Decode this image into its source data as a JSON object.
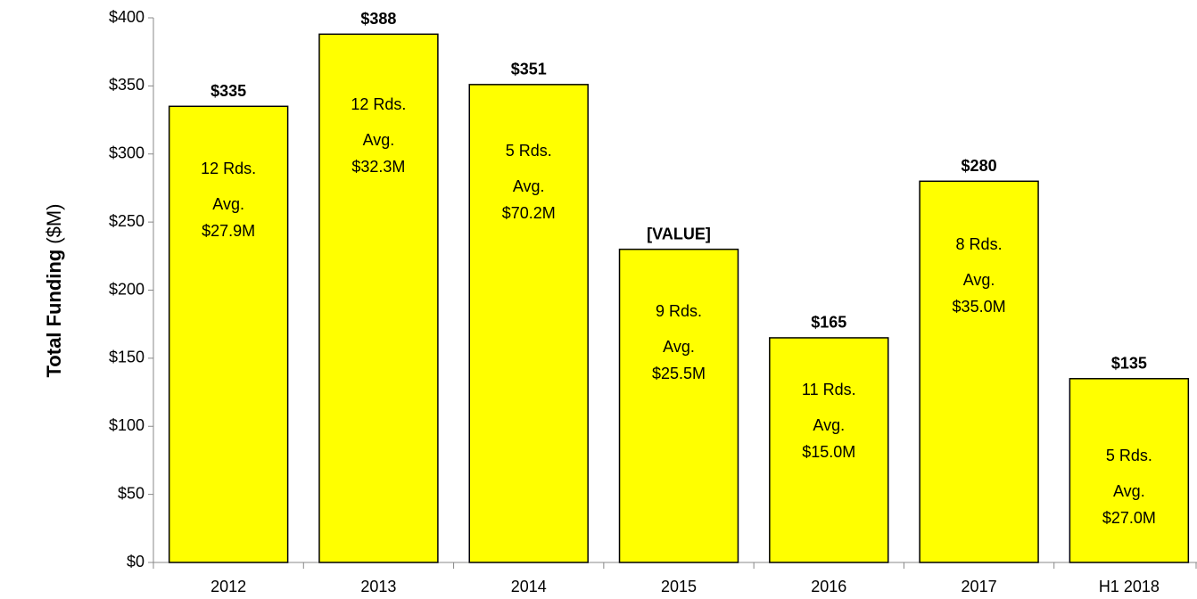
{
  "chart_data": {
    "type": "bar",
    "ylabel": "Total Funding",
    "ylabel_unit": "($M)",
    "categories": [
      "2012",
      "2013",
      "2014",
      "2015",
      "2016",
      "2017",
      "H1 2018"
    ],
    "values": [
      335,
      388,
      351,
      230,
      165,
      280,
      135
    ],
    "value_labels": [
      "$335",
      "$388",
      "$351",
      "[VALUE]",
      "$165",
      "$280",
      "$135"
    ],
    "annotations": [
      {
        "rounds": "12 Rds.",
        "avg_label": "Avg.",
        "avg": "$27.9M"
      },
      {
        "rounds": "12 Rds.",
        "avg_label": "Avg.",
        "avg": "$32.3M"
      },
      {
        "rounds": "5 Rds.",
        "avg_label": "Avg.",
        "avg": "$70.2M"
      },
      {
        "rounds": "9 Rds.",
        "avg_label": "Avg.",
        "avg": "$25.5M"
      },
      {
        "rounds": "11 Rds.",
        "avg_label": "Avg.",
        "avg": "$15.0M"
      },
      {
        "rounds": "8 Rds.",
        "avg_label": "Avg.",
        "avg": "$35.0M"
      },
      {
        "rounds": "5 Rds.",
        "avg_label": "Avg.",
        "avg": "$27.0M"
      }
    ],
    "color": "#ffff00",
    "ylim": [
      0,
      400
    ],
    "yticks": [
      {
        "value": 0,
        "label": "$0"
      },
      {
        "value": 50,
        "label": "$50"
      },
      {
        "value": 100,
        "label": "$100"
      },
      {
        "value": 150,
        "label": "$150"
      },
      {
        "value": 200,
        "label": "$200"
      },
      {
        "value": 250,
        "label": "$250"
      },
      {
        "value": 300,
        "label": "$300"
      },
      {
        "value": 350,
        "label": "$350"
      },
      {
        "value": 400,
        "label": "$400"
      }
    ],
    "grid": false
  }
}
